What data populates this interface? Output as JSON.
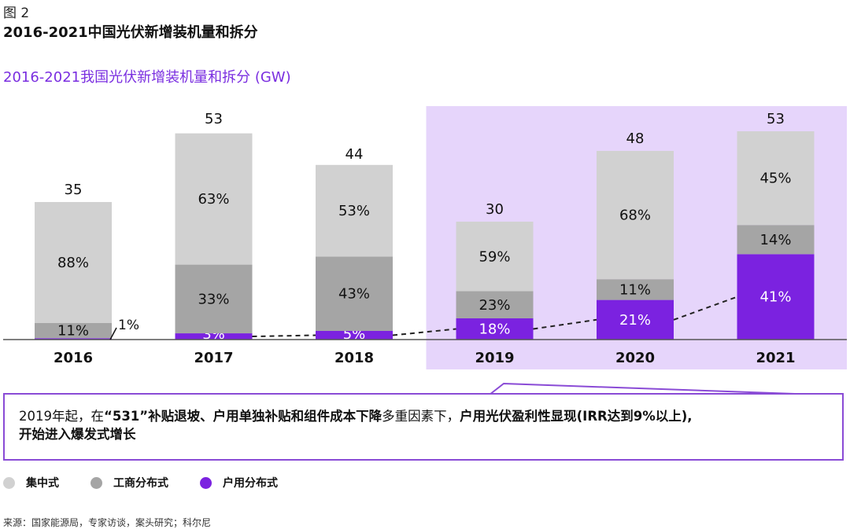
{
  "figure": {
    "label": "图 2",
    "title": "2016-2021中国光伏新增装机量和拆分"
  },
  "chart_data": {
    "type": "bar",
    "stacked": true,
    "title": "2016-2021我国光伏新增装机量和拆分 (GW)",
    "categories": [
      "2016",
      "2017",
      "2018",
      "2019",
      "2020",
      "2021"
    ],
    "totals": [
      35,
      53,
      44,
      30,
      48,
      53
    ],
    "total_labels": [
      "35",
      "53",
      "44",
      "30",
      "48",
      "53"
    ],
    "unit": "GW",
    "series": [
      {
        "name": "户用分布式",
        "color": "#7b22e0",
        "values_pct": [
          1,
          3,
          5,
          18,
          21,
          41
        ],
        "labels": [
          "1%",
          "3%",
          "5%",
          "18%",
          "21%",
          "41%"
        ]
      },
      {
        "name": "工商分布式",
        "color": "#a5a5a5",
        "values_pct": [
          11,
          33,
          43,
          23,
          11,
          14
        ],
        "labels": [
          "11%",
          "33%",
          "43%",
          "23%",
          "11%",
          "14%"
        ]
      },
      {
        "name": "集中式",
        "color": "#d1d1d1",
        "values_pct": [
          88,
          63,
          53,
          59,
          68,
          45
        ],
        "labels": [
          "88%",
          "63%",
          "53%",
          "59%",
          "68%",
          "45%"
        ]
      }
    ],
    "highlight_years": [
      "2019",
      "2020",
      "2021"
    ],
    "highlight_color": "#e6d5fb",
    "trend_line": "dashed line connecting 户用分布式 segments",
    "legend_position": "bottom-left"
  },
  "callout": {
    "t1": "2019年起，在",
    "b1": "“531”补贴退坡、户用单独补贴和组件成本下降",
    "t2": "多重因素下，",
    "b2": "户用光伏盈利性显现(IRR达到9%以上),",
    "b3": "开始进入爆发式增长"
  },
  "legend": [
    "集中式",
    "工商分布式",
    "户用分布式"
  ],
  "source": "来源：国家能源局，专家访谈，案头研究；科尔尼"
}
